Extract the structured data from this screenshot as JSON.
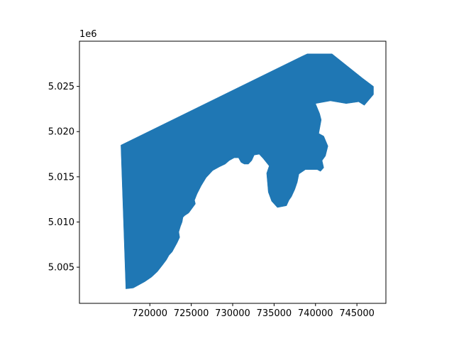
{
  "figure": {
    "y_offset_text": "1e6"
  },
  "chart_data": {
    "type": "map",
    "title": "",
    "xlabel": "",
    "ylabel": "",
    "xlim": [
      711500,
      748500
    ],
    "ylim": [
      5001000,
      5030000
    ],
    "x_ticks": [
      {
        "value": 720000,
        "label": "720000"
      },
      {
        "value": 725000,
        "label": "725000"
      },
      {
        "value": 730000,
        "label": "730000"
      },
      {
        "value": 735000,
        "label": "735000"
      },
      {
        "value": 740000,
        "label": "740000"
      },
      {
        "value": 745000,
        "label": "745000"
      }
    ],
    "y_ticks": [
      {
        "value": 5005000,
        "label": "5.005"
      },
      {
        "value": 5010000,
        "label": "5.010"
      },
      {
        "value": 5015000,
        "label": "5.015"
      },
      {
        "value": 5020000,
        "label": "5.020"
      },
      {
        "value": 5025000,
        "label": "5.025"
      }
    ],
    "grid": false,
    "fill_color": "#1f77b4",
    "boundary": [
      [
        716500,
        5018500
      ],
      [
        738300,
        5028300
      ],
      [
        739000,
        5028600
      ],
      [
        742000,
        5028600
      ],
      [
        745700,
        5025900
      ],
      [
        747000,
        5025000
      ],
      [
        747000,
        5024100
      ],
      [
        745900,
        5022900
      ],
      [
        745200,
        5023300
      ],
      [
        743700,
        5023100
      ],
      [
        741800,
        5023400
      ],
      [
        740000,
        5023100
      ],
      [
        740500,
        5022000
      ],
      [
        740700,
        5021300
      ],
      [
        740400,
        5019800
      ],
      [
        741000,
        5019500
      ],
      [
        741500,
        5018400
      ],
      [
        741200,
        5017300
      ],
      [
        740800,
        5016800
      ],
      [
        741000,
        5016000
      ],
      [
        740600,
        5015600
      ],
      [
        740200,
        5015800
      ],
      [
        738800,
        5015800
      ],
      [
        738000,
        5015300
      ],
      [
        737800,
        5014400
      ],
      [
        737500,
        5013600
      ],
      [
        737100,
        5012800
      ],
      [
        736800,
        5012400
      ],
      [
        736500,
        5011800
      ],
      [
        735400,
        5011600
      ],
      [
        734700,
        5012300
      ],
      [
        734300,
        5013300
      ],
      [
        734200,
        5014400
      ],
      [
        734100,
        5015400
      ],
      [
        734400,
        5016200
      ],
      [
        733700,
        5017000
      ],
      [
        733200,
        5017500
      ],
      [
        732600,
        5017400
      ],
      [
        732300,
        5016800
      ],
      [
        731900,
        5016400
      ],
      [
        731400,
        5016400
      ],
      [
        731000,
        5016600
      ],
      [
        730700,
        5017100
      ],
      [
        730200,
        5017100
      ],
      [
        729600,
        5016800
      ],
      [
        729100,
        5016400
      ],
      [
        728400,
        5016100
      ],
      [
        727600,
        5015700
      ],
      [
        726800,
        5014900
      ],
      [
        726200,
        5014000
      ],
      [
        725700,
        5013100
      ],
      [
        725400,
        5012400
      ],
      [
        725500,
        5012000
      ],
      [
        725100,
        5011500
      ],
      [
        724700,
        5011000
      ],
      [
        724200,
        5010700
      ],
      [
        724000,
        5010500
      ],
      [
        723900,
        5010000
      ],
      [
        723700,
        5009500
      ],
      [
        723500,
        5008900
      ],
      [
        723600,
        5008300
      ],
      [
        723300,
        5007700
      ],
      [
        723000,
        5007200
      ],
      [
        722700,
        5006700
      ],
      [
        722300,
        5006300
      ],
      [
        722000,
        5005800
      ],
      [
        721500,
        5005200
      ],
      [
        720900,
        5004500
      ],
      [
        720200,
        5003900
      ],
      [
        719400,
        5003400
      ],
      [
        718600,
        5003000
      ],
      [
        718000,
        5002700
      ],
      [
        717100,
        5002600
      ],
      [
        716500,
        5018500
      ]
    ]
  }
}
